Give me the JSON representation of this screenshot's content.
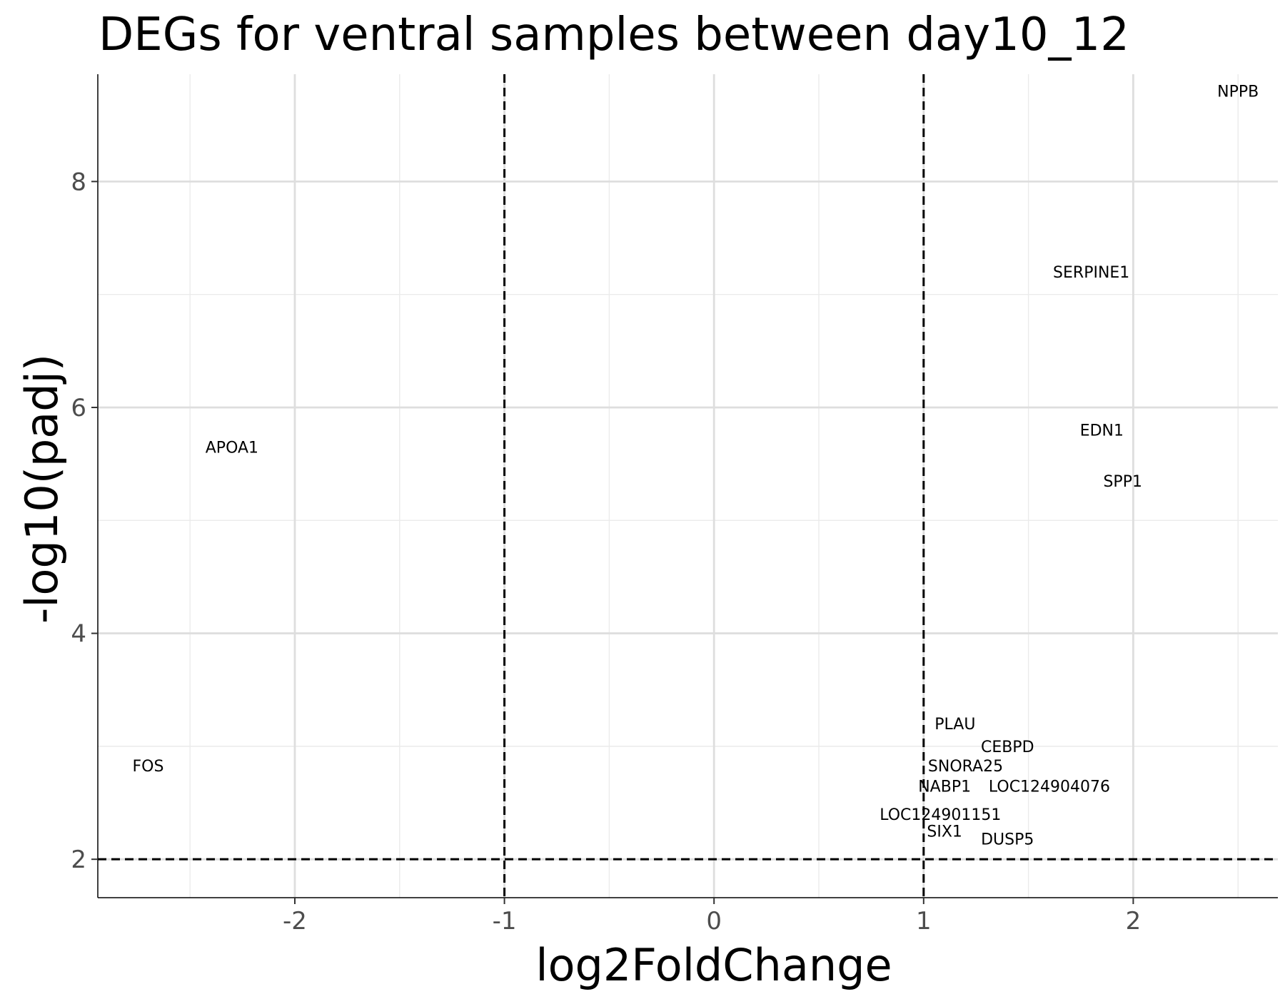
{
  "chart_data": {
    "type": "scatter",
    "title": "DEGs for ventral samples between day10_12",
    "xlabel": "log2FoldChange",
    "ylabel": "-log10(padj)",
    "xlim": [
      -2.94,
      2.69
    ],
    "ylim": [
      1.66,
      8.95
    ],
    "xticks": [
      -2,
      -1,
      0,
      1,
      2
    ],
    "xtick_labels": [
      "-2",
      "-1",
      "0",
      "1",
      "2"
    ],
    "yticks": [
      2,
      4,
      6,
      8
    ],
    "ytick_labels": [
      "2",
      "4",
      "6",
      "8"
    ],
    "grid": true,
    "legend": "none",
    "thresholds": {
      "log2fc": [
        -1,
        1
      ],
      "neg_log10_padj": 2
    },
    "points": [
      {
        "label": "NPPB",
        "x": 2.5,
        "y": 8.8
      },
      {
        "label": "SERPINE1",
        "x": 1.8,
        "y": 7.2
      },
      {
        "label": "EDN1",
        "x": 1.85,
        "y": 5.8
      },
      {
        "label": "APOA1",
        "x": -2.3,
        "y": 5.65
      },
      {
        "label": "SPP1",
        "x": 1.95,
        "y": 5.35
      },
      {
        "label": "PLAU",
        "x": 1.15,
        "y": 3.2
      },
      {
        "label": "CEBPD",
        "x": 1.4,
        "y": 3.0
      },
      {
        "label": "FOS",
        "x": -2.7,
        "y": 2.83
      },
      {
        "label": "SNORA25",
        "x": 1.2,
        "y": 2.83
      },
      {
        "label": "NABP1",
        "x": 1.1,
        "y": 2.65
      },
      {
        "label": "LOC124904076",
        "x": 1.6,
        "y": 2.65
      },
      {
        "label": "LOC124901151",
        "x": 1.08,
        "y": 2.4
      },
      {
        "label": "SIX1",
        "x": 1.1,
        "y": 2.25
      },
      {
        "label": "DUSP5",
        "x": 1.4,
        "y": 2.18
      }
    ]
  }
}
